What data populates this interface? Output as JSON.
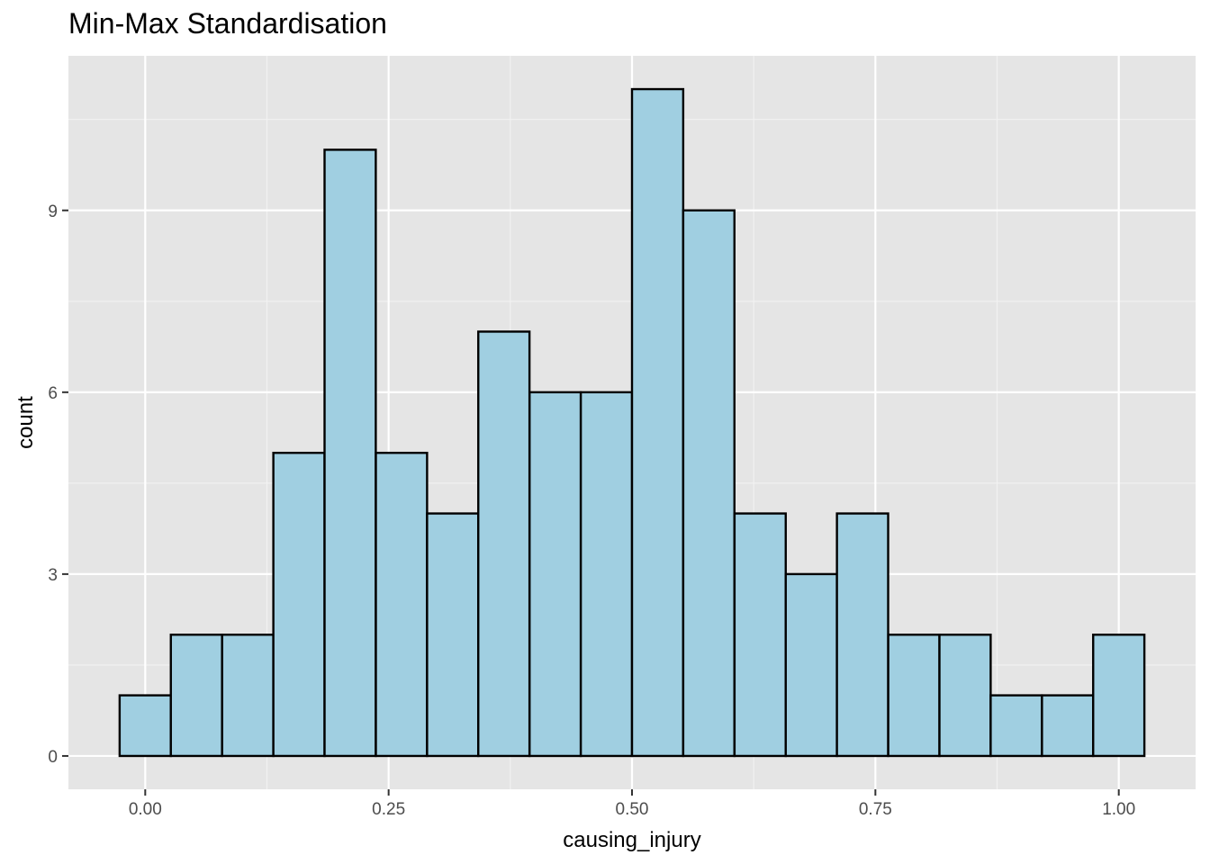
{
  "chart_data": {
    "type": "bar",
    "title": "Min-Max Standardisation",
    "xlabel": "causing_injury",
    "ylabel": "count",
    "bin_width": 0.0526,
    "bins": [
      {
        "center": 0.0,
        "count": 1
      },
      {
        "center": 0.0526,
        "count": 2
      },
      {
        "center": 0.1053,
        "count": 2
      },
      {
        "center": 0.1579,
        "count": 5
      },
      {
        "center": 0.2105,
        "count": 10
      },
      {
        "center": 0.2632,
        "count": 5
      },
      {
        "center": 0.3158,
        "count": 4
      },
      {
        "center": 0.3684,
        "count": 7
      },
      {
        "center": 0.4211,
        "count": 6
      },
      {
        "center": 0.4737,
        "count": 6
      },
      {
        "center": 0.5263,
        "count": 11
      },
      {
        "center": 0.5789,
        "count": 9
      },
      {
        "center": 0.6316,
        "count": 4
      },
      {
        "center": 0.6842,
        "count": 3
      },
      {
        "center": 0.7368,
        "count": 4
      },
      {
        "center": 0.7895,
        "count": 2
      },
      {
        "center": 0.8421,
        "count": 2
      },
      {
        "center": 0.8947,
        "count": 1
      },
      {
        "center": 0.9474,
        "count": 1
      },
      {
        "center": 1.0,
        "count": 2
      }
    ],
    "xlim": [
      -0.0789,
      1.0789
    ],
    "ylim": [
      -0.55,
      11.55
    ],
    "x_ticks": [
      0.0,
      0.25,
      0.5,
      0.75,
      1.0
    ],
    "x_tick_labels": [
      "0.00",
      "0.25",
      "0.50",
      "0.75",
      "1.00"
    ],
    "y_ticks": [
      0,
      3,
      6,
      9
    ],
    "y_tick_labels": [
      "0",
      "3",
      "6",
      "9"
    ],
    "grid": true,
    "legend": "none",
    "colors": {
      "bar_fill": "#a0cfe1",
      "bar_stroke": "#000000",
      "panel_bg": "#e5e5e5",
      "grid_major": "#ffffff",
      "grid_minor": "#f2f2f2"
    }
  }
}
